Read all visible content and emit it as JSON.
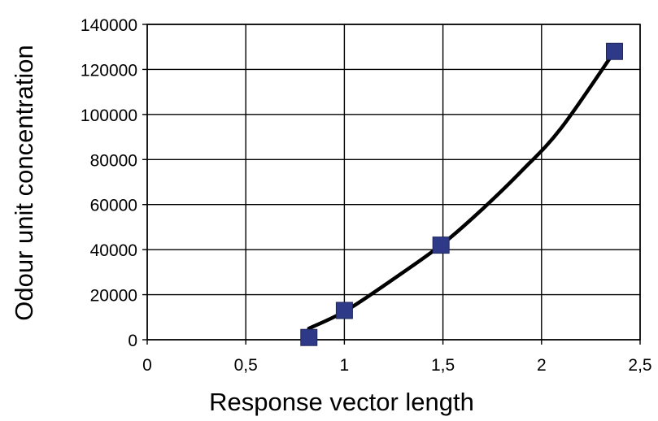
{
  "chart_data": {
    "type": "scatter",
    "title": "",
    "xlabel": "Response vector length",
    "ylabel": "Odour unit concentration",
    "xlim": [
      0,
      2.5
    ],
    "ylim": [
      0,
      140000
    ],
    "x_ticks": [
      0,
      0.5,
      1,
      1.5,
      2,
      2.5
    ],
    "x_tick_labels": [
      "0",
      "0,5",
      "1",
      "1,5",
      "2",
      "2,5"
    ],
    "y_ticks": [
      0,
      20000,
      40000,
      60000,
      80000,
      100000,
      120000,
      140000
    ],
    "y_tick_labels": [
      "0",
      "20000",
      "40000",
      "60000",
      "80000",
      "100000",
      "120000",
      "140000"
    ],
    "grid": true,
    "legend": "none",
    "series": [
      {
        "type": "scatter",
        "marker": "square",
        "color": "#2E3A87",
        "x": [
          0.82,
          1.0,
          1.49,
          2.37
        ],
        "y": [
          1000,
          13000,
          42000,
          128000
        ]
      },
      {
        "type": "line",
        "color": "#000000",
        "x": [
          0.82,
          1.0,
          1.2,
          1.49,
          1.7,
          1.9,
          2.1,
          2.37
        ],
        "y": [
          5000,
          12500,
          24000,
          42000,
          58000,
          75000,
          94000,
          128000
        ]
      }
    ]
  }
}
